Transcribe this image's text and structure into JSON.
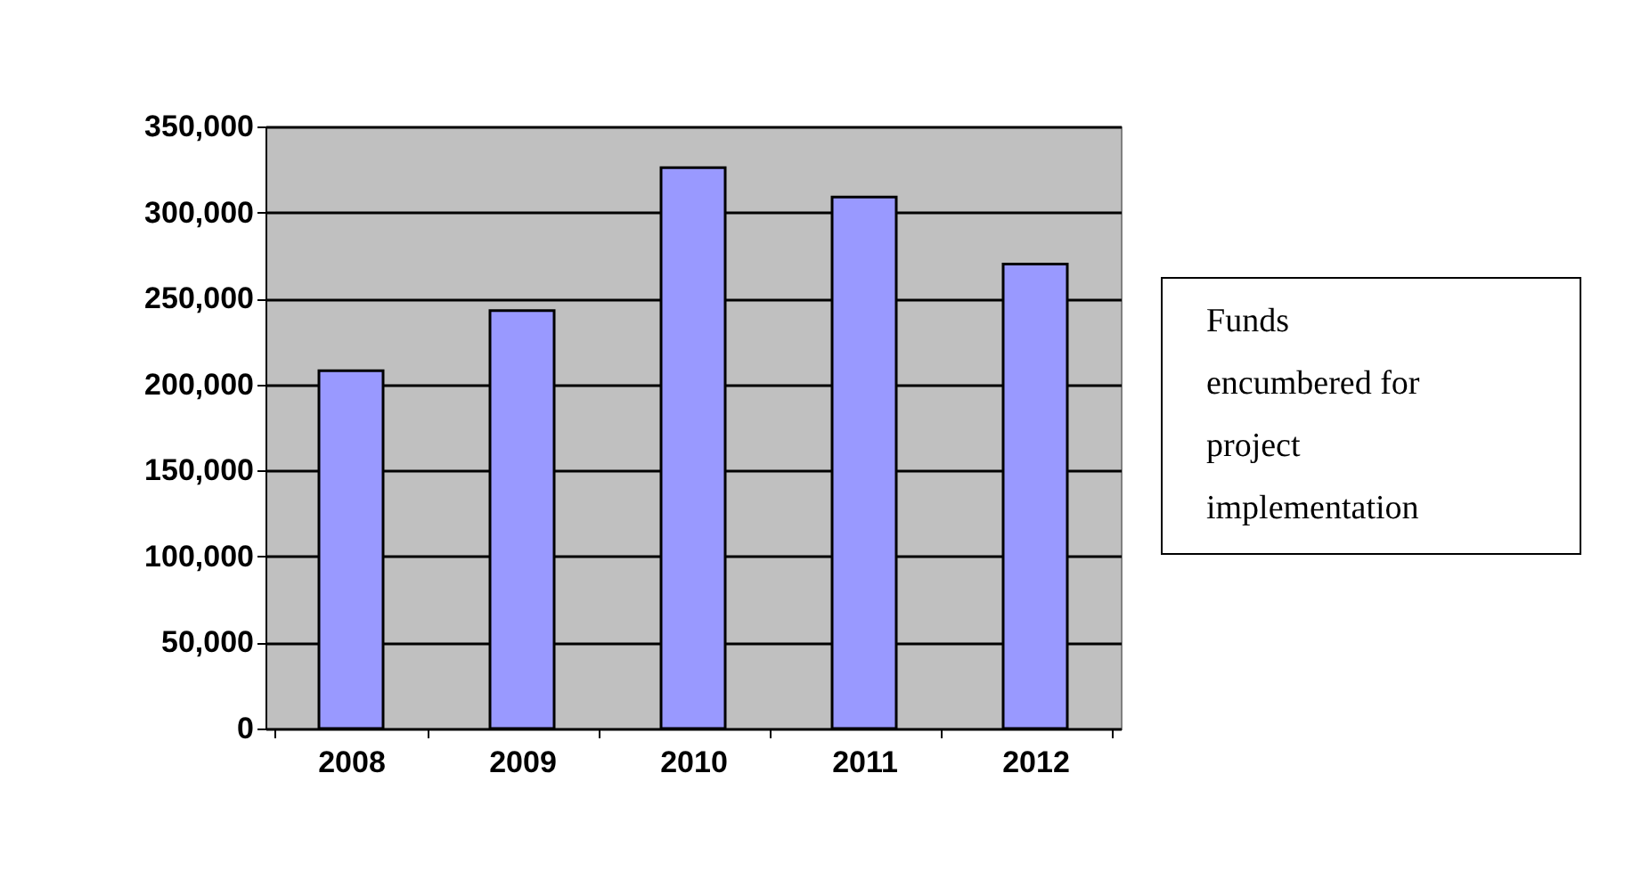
{
  "chart_data": {
    "type": "bar",
    "categories": [
      "2008",
      "2009",
      "2010",
      "2011",
      "2012"
    ],
    "values": [
      208000,
      243000,
      326000,
      309000,
      270000
    ],
    "color": "#9999ff",
    "ylim": [
      0,
      350000
    ],
    "yticks": [
      0,
      {
        "value": 50000,
        "label": "50,000"
      },
      {
        "value": 100000,
        "label": "100,000"
      },
      {
        "value": 150000,
        "label": "150,000"
      },
      {
        "value": 200000,
        "label": "200,000"
      },
      {
        "value": 250000,
        "label": "250,000"
      },
      {
        "value": 300000,
        "label": "300,000"
      },
      {
        "value": 350000,
        "label": "350,000"
      }
    ],
    "grid": "y",
    "annotations": [
      "Funds encumbered for project implementation"
    ]
  }
}
